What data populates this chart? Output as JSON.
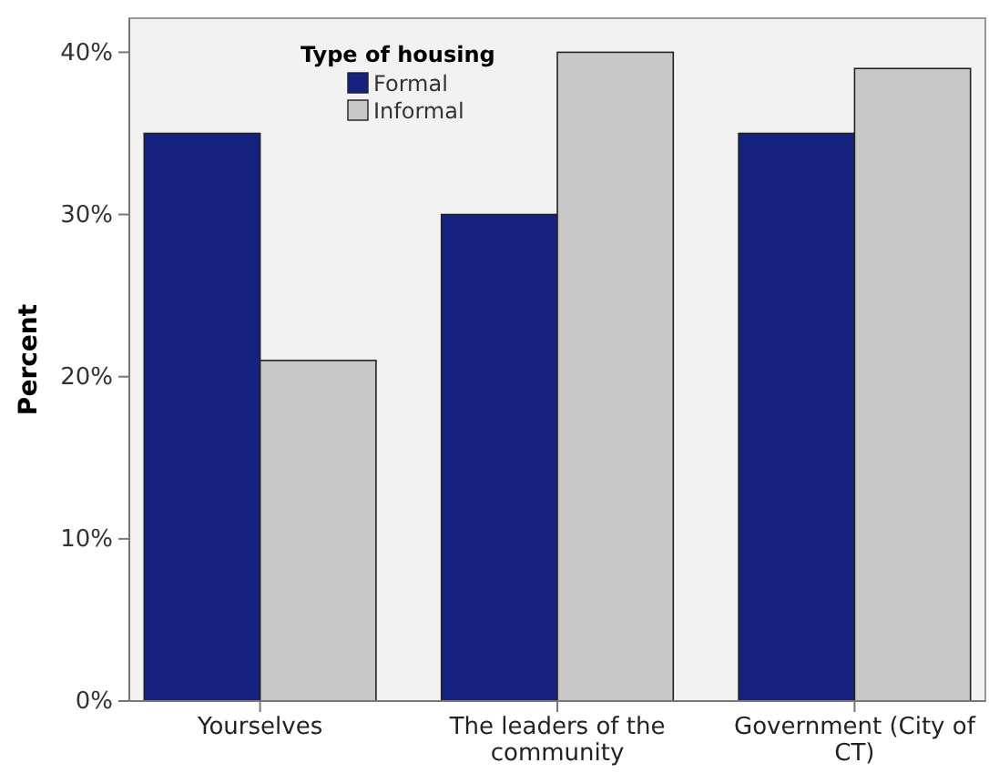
{
  "chart_data": {
    "type": "bar",
    "ylabel": "Percent",
    "legend_title": "Type of housing",
    "categories": [
      "Yourselves",
      "The leaders of the community",
      "Government (City of CT)"
    ],
    "series": [
      {
        "name": "Formal",
        "color": "#15227f",
        "values": [
          35,
          30,
          35
        ]
      },
      {
        "name": "Informal",
        "color": "#c8c8c8",
        "values": [
          21,
          40,
          39
        ]
      }
    ],
    "ylim": [
      0,
      42.1
    ],
    "yticks": [
      {
        "value": 0,
        "label": "0%"
      },
      {
        "value": 10,
        "label": "10%"
      },
      {
        "value": 20,
        "label": "20%"
      },
      {
        "value": 30,
        "label": "30%"
      },
      {
        "value": 40,
        "label": "40%"
      }
    ],
    "grid": false,
    "legend": "top"
  }
}
